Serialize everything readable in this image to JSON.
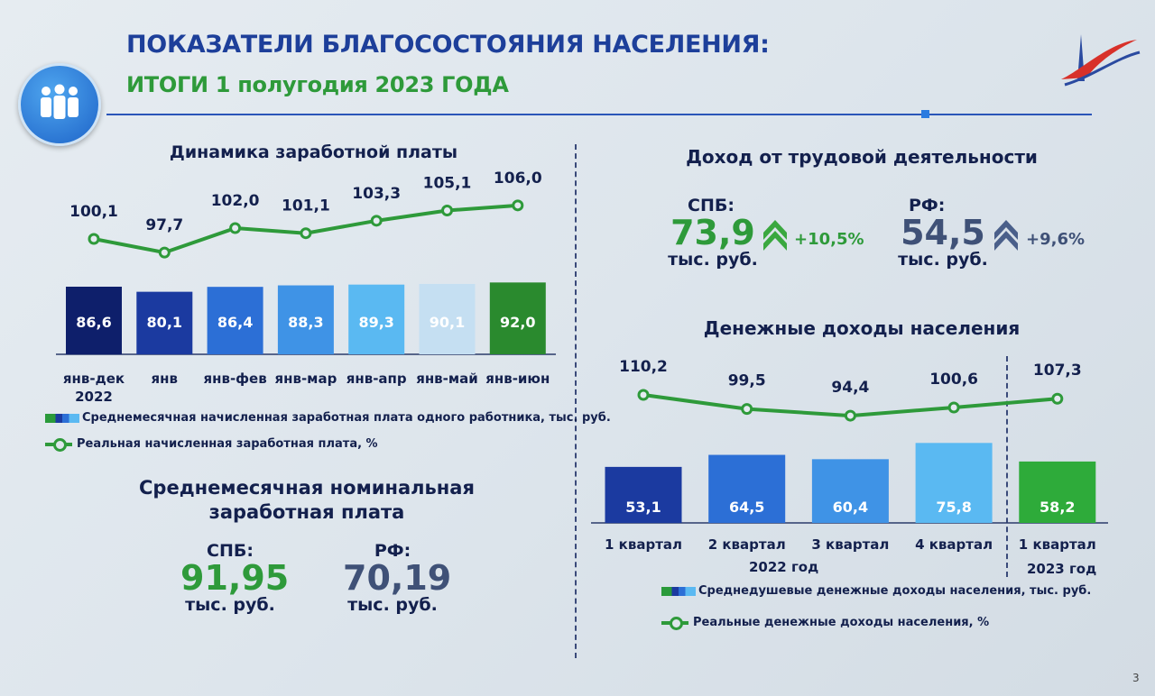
{
  "header": {
    "title": "ПОКАЗАТЕЛИ БЛАГОСОСТОЯНИЯ НАСЕЛЕНИЯ:",
    "subtitle": "ИТОГИ 1 полугодия 2023 ГОДА"
  },
  "left": {
    "wage_section_title": "Динамика заработной платы",
    "nominal_title_line1": "Среднемесячная номинальная",
    "nominal_title_line2": "заработная плата",
    "spb_label": "СПБ:",
    "spb_value": "91,95",
    "spb_unit": "тыс. руб.",
    "rf_label": "РФ:",
    "rf_value": "70,19",
    "rf_unit": "тыс. руб."
  },
  "right": {
    "income_title": "Доход от трудовой деятельности",
    "spb_label": "СПБ:",
    "spb_value": "73,9",
    "spb_unit": "тыс. руб.",
    "spb_change": "+10,5%",
    "rf_label": "РФ:",
    "rf_value": "54,5",
    "rf_unit": "тыс. руб.",
    "rf_change": "+9,6%",
    "money_title": "Денежные доходы населения",
    "group_2022": "2022 год",
    "group_2023": "2023 год"
  },
  "page_number": "3",
  "chart_data": [
    {
      "type": "bar+line",
      "title": "Динамика заработной платы",
      "categories": [
        "янв-дек\n2022",
        "янв",
        "янв-фев",
        "янв-мар",
        "янв-апр",
        "янв-май",
        "янв-июн"
      ],
      "series": [
        {
          "name": "Среднемесячная начисленная заработная плата одного работника, тыс. руб.",
          "type": "bar",
          "values": [
            86.6,
            80.1,
            86.4,
            88.3,
            89.3,
            90.1,
            92.0
          ],
          "labels": [
            "86,6",
            "80,1",
            "86,4",
            "88,3",
            "89,3",
            "90,1",
            "92,0"
          ],
          "colors": [
            "#0e1f6b",
            "#1b3aa0",
            "#2c6fd6",
            "#3f93e6",
            "#5ab9f2",
            "#c5dff2",
            "#2a8a2e"
          ]
        },
        {
          "name": "Реальная начисленная заработная плата, %",
          "type": "line",
          "values": [
            100.1,
            97.7,
            102.0,
            101.1,
            103.3,
            105.1,
            106.0
          ],
          "labels": [
            "100,1",
            "97,7",
            "102,0",
            "101,1",
            "103,3",
            "105,1",
            "106,0"
          ],
          "color": "#2e9a3a"
        }
      ]
    },
    {
      "type": "bar+line",
      "title": "Денежные доходы населения",
      "categories": [
        "1 квартал",
        "2 квартал",
        "3 квартал",
        "4 квартал",
        "1 квартал"
      ],
      "series": [
        {
          "name": "Среднедушевые денежные доходы населения, тыс. руб.",
          "type": "bar",
          "values": [
            53.1,
            64.5,
            60.4,
            75.8,
            58.2
          ],
          "labels": [
            "53,1",
            "64,5",
            "60,4",
            "75,8",
            "58,2"
          ],
          "colors": [
            "#1b3aa0",
            "#2c6fd6",
            "#3f93e6",
            "#5ab9f2",
            "#2eab3a"
          ]
        },
        {
          "name": "Реальные денежные доходы населения, %",
          "type": "line",
          "values": [
            110.2,
            99.5,
            94.4,
            100.6,
            107.3
          ],
          "labels": [
            "110,2",
            "99,5",
            "94,4",
            "100,6",
            "107,3"
          ],
          "color": "#2e9a3a"
        }
      ]
    }
  ]
}
